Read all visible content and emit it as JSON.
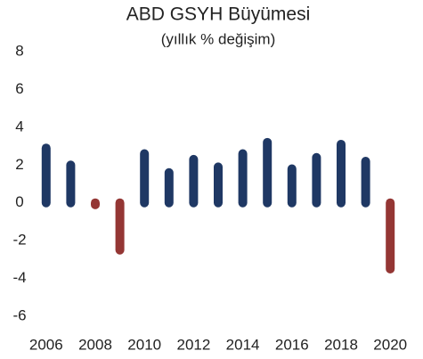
{
  "chart_data": {
    "type": "bar",
    "title": "ABD GSYH Büyümesi",
    "subtitle": "(yıllık % değişim)",
    "categories": [
      "2006",
      null,
      "2008",
      null,
      "2010",
      null,
      "2012",
      null,
      "2014",
      null,
      "2016",
      null,
      "2018",
      null,
      "2020"
    ],
    "values": [
      2.9,
      2.0,
      -0.1,
      -2.5,
      2.6,
      1.6,
      2.3,
      1.9,
      2.6,
      3.2,
      1.8,
      2.4,
      3.1,
      2.2,
      -3.5
    ],
    "colors": [
      "#1f3864",
      "#1f3864",
      "#943634",
      "#943634",
      "#1f3864",
      "#1f3864",
      "#1f3864",
      "#1f3864",
      "#1f3864",
      "#1f3864",
      "#1f3864",
      "#1f3864",
      "#1f3864",
      "#1f3864",
      "#943634"
    ],
    "ylim": [
      -6,
      8
    ],
    "yticks": [
      -6,
      -4,
      -2,
      0,
      2,
      4,
      6,
      8
    ],
    "grid": false
  }
}
